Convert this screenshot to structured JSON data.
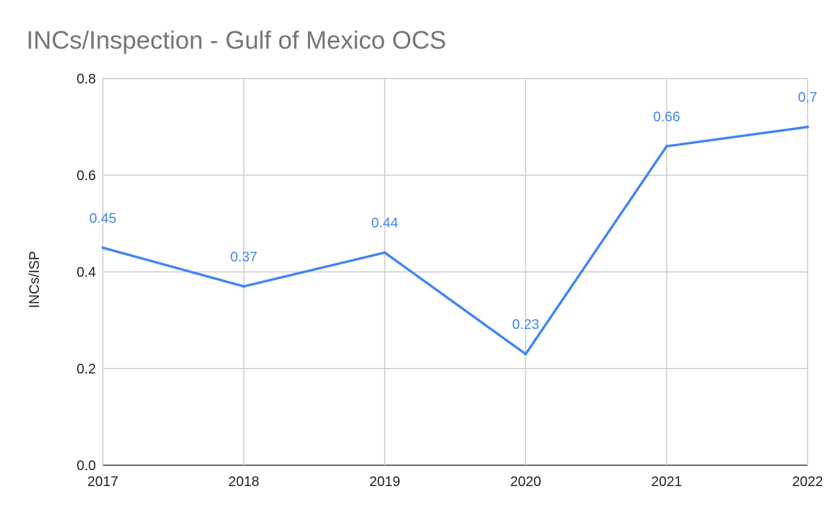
{
  "chart_data": {
    "type": "line",
    "title": "INCs/Inspection - Gulf of Mexico OCS",
    "xlabel": "",
    "ylabel": "INCs/ISP",
    "categories": [
      "2017",
      "2018",
      "2019",
      "2020",
      "2021",
      "2022"
    ],
    "series": [
      {
        "name": "INCs/ISP",
        "values": [
          0.45,
          0.37,
          0.44,
          0.23,
          0.66,
          0.7
        ],
        "data_labels": [
          "0.45",
          "0.37",
          "0.44",
          "0.23",
          "0.66",
          "0.7"
        ],
        "color": "#4285f4"
      }
    ],
    "ylim": [
      0,
      0.8
    ],
    "yticks": [
      "0.0",
      "0.2",
      "0.4",
      "0.6",
      "0.8"
    ],
    "grid": true,
    "legend": "none"
  }
}
